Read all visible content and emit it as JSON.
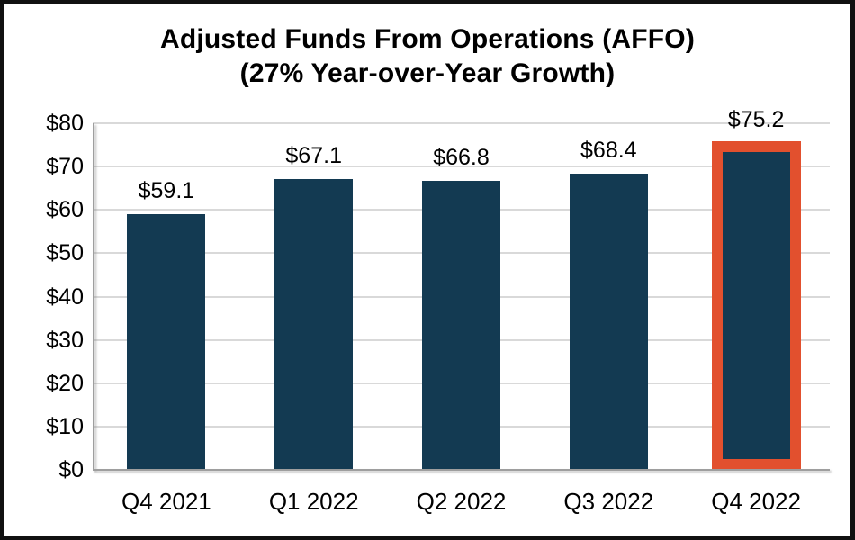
{
  "chart_data": {
    "type": "bar",
    "title": "Adjusted Funds From Operations (AFFO)",
    "subtitle": "(27% Year-over-Year Growth)",
    "categories": [
      "Q4 2021",
      "Q1 2022",
      "Q2 2022",
      "Q3 2022",
      "Q4 2022"
    ],
    "values": [
      59.1,
      67.1,
      66.8,
      68.4,
      75.2
    ],
    "value_labels": [
      "$59.1",
      "$67.1",
      "$66.8",
      "$68.4",
      "$75.2"
    ],
    "ylabel": "",
    "xlabel": "",
    "ylim": [
      0,
      80
    ],
    "ytick_step": 10,
    "ytick_labels": [
      "$0",
      "$10",
      "$20",
      "$30",
      "$40",
      "$50",
      "$60",
      "$70",
      "$80"
    ],
    "grid": true,
    "legend": "none",
    "highlight_index": 4,
    "colors": {
      "bar_fill": "#133A52",
      "highlight_border": "#E2502E",
      "gridline": "#D9D9D9",
      "axis_line": "#9E9E9E",
      "text": "#000000",
      "frame_border": "#111111",
      "background": "#FFFFFF"
    }
  }
}
